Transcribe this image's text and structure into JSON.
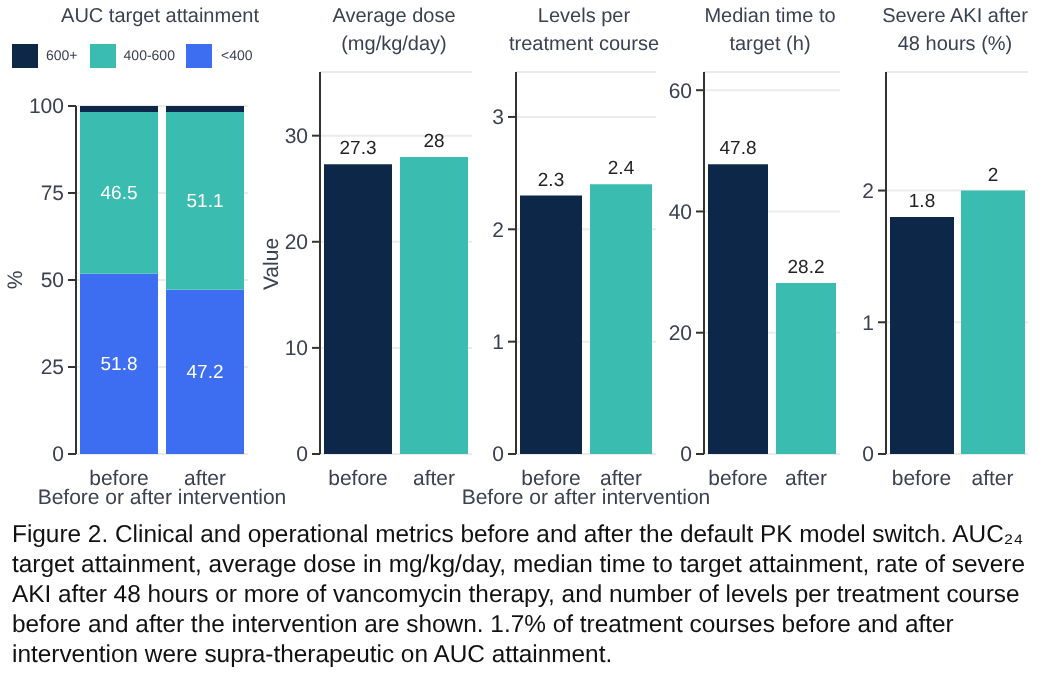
{
  "chart_data": [
    {
      "type": "bar",
      "title": "AUC target attainment",
      "categories": [
        "before",
        "after"
      ],
      "xlabel": "Before or after intervention",
      "ylabel": "%",
      "stacked": true,
      "legend": "top",
      "grid": "y",
      "ylim": [
        0,
        100
      ],
      "yticks": [
        0,
        25,
        50,
        75,
        100
      ],
      "series": [
        {
          "name": "<400",
          "color": "#3d6ef2",
          "values": [
            51.8,
            47.2
          ],
          "value_labels": [
            "51.8",
            "47.2"
          ]
        },
        {
          "name": "400-600",
          "color": "#3bbcb0",
          "values": [
            46.5,
            51.1
          ],
          "value_labels": [
            "46.5",
            "51.1"
          ]
        },
        {
          "name": "600+",
          "color": "#0d2748",
          "values": [
            1.7,
            1.7
          ]
        }
      ],
      "annotations": [
        "Figure 2. Clinical and operational metrics before and after the default PK model switch. AUC₂₄ target attainment, average dose in mg/kg/day, median time to target attainment, rate of severe AKI after 48 hours or more of vancomycin therapy, and number of levels per treatment course before and after the intervention are shown. 1.7% of treatment courses before and after intervention were supra-therapeutic on AUC attainment."
      ]
    },
    {
      "type": "bar",
      "title": "Average dose (mg/kg/day)",
      "categories": [
        "before",
        "after"
      ],
      "ylabel": "Value",
      "grid": "y",
      "data_labels": true,
      "ylim": [
        0,
        36
      ],
      "yticks": [
        0,
        10,
        20,
        30
      ],
      "values": [
        27.3,
        28
      ],
      "colors": [
        "#0d2748",
        "#3bbcb0"
      ]
    },
    {
      "type": "bar",
      "title": "Levels per treatment course",
      "categories": [
        "before",
        "after"
      ],
      "xlabel": "Before or after intervention",
      "grid": "y",
      "data_labels": true,
      "ylim": [
        0,
        3.4
      ],
      "yticks": [
        0,
        1,
        2,
        3
      ],
      "values": [
        2.3,
        2.4
      ],
      "colors": [
        "#0d2748",
        "#3bbcb0"
      ]
    },
    {
      "type": "bar",
      "title": "Median time to target (h)",
      "categories": [
        "before",
        "after"
      ],
      "grid": "y",
      "data_labels": true,
      "ylim": [
        0,
        63
      ],
      "yticks": [
        0,
        20,
        40,
        60
      ],
      "values": [
        47.8,
        28.2
      ],
      "colors": [
        "#0d2748",
        "#3bbcb0"
      ]
    },
    {
      "type": "bar",
      "title": "Severe AKI after 48 hours (%)",
      "categories": [
        "before",
        "after"
      ],
      "grid": "y",
      "data_labels": true,
      "ylim": [
        0,
        2.9
      ],
      "yticks": [
        0,
        1,
        2
      ],
      "values": [
        1.8,
        2
      ],
      "colors": [
        "#0d2748",
        "#3bbcb0"
      ]
    }
  ]
}
